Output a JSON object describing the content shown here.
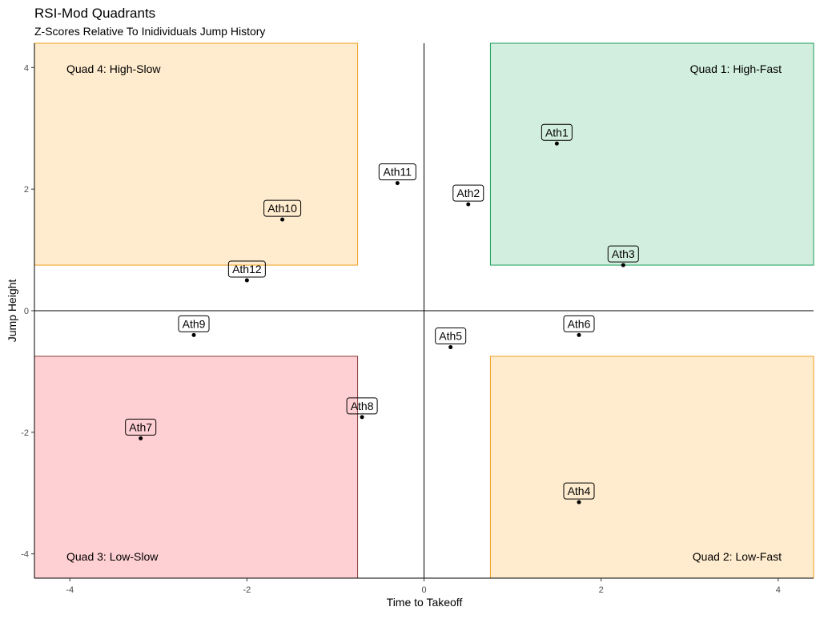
{
  "chart_data": {
    "type": "scatter",
    "title": "RSI-Mod Quadrants",
    "subtitle": "Z-Scores Relative To Inidividuals Jump History",
    "xlabel": "Time to Takeoff",
    "ylabel": "Jump Height",
    "xlim": [
      -4.4,
      4.4
    ],
    "ylim": [
      -4.4,
      4.4
    ],
    "xticks": [
      -4,
      -2,
      0,
      2,
      4
    ],
    "yticks": [
      -4,
      -2,
      0,
      2,
      4
    ],
    "grid": false,
    "reference_lines": {
      "x": 0,
      "y": 0
    },
    "quadrants": [
      {
        "label": "Quad 1: High-Fast",
        "x": [
          0.75,
          4.4
        ],
        "y": [
          0.75,
          4.4
        ],
        "fill": "#d2eedf",
        "stroke": "#1a9e5a"
      },
      {
        "label": "Quad 2: Low-Fast",
        "x": [
          0.75,
          4.4
        ],
        "y": [
          -4.4,
          -0.75
        ],
        "fill": "#ffebcd",
        "stroke": "#f0a020"
      },
      {
        "label": "Quad 3: Low-Slow",
        "x": [
          -4.4,
          -0.75
        ],
        "y": [
          -4.4,
          -0.75
        ],
        "fill": "#ffd0d3",
        "stroke": "#8b3a3a"
      },
      {
        "label": "Quad 4: High-Slow",
        "x": [
          -4.4,
          -0.75
        ],
        "y": [
          0.75,
          4.4
        ],
        "fill": "#ffebcd",
        "stroke": "#f0a020"
      }
    ],
    "points": [
      {
        "label": "Ath1",
        "x": 1.5,
        "y": 2.75
      },
      {
        "label": "Ath2",
        "x": 0.5,
        "y": 1.75
      },
      {
        "label": "Ath3",
        "x": 2.25,
        "y": 0.75
      },
      {
        "label": "Ath4",
        "x": 1.75,
        "y": -3.15
      },
      {
        "label": "Ath5",
        "x": 0.3,
        "y": -0.6
      },
      {
        "label": "Ath6",
        "x": 1.75,
        "y": -0.4
      },
      {
        "label": "Ath7",
        "x": -3.2,
        "y": -2.1
      },
      {
        "label": "Ath8",
        "x": -0.7,
        "y": -1.75
      },
      {
        "label": "Ath9",
        "x": -2.6,
        "y": -0.4
      },
      {
        "label": "Ath10",
        "x": -1.6,
        "y": 1.5
      },
      {
        "label": "Ath11",
        "x": -0.3,
        "y": 2.1
      },
      {
        "label": "Ath12",
        "x": -2.0,
        "y": 0.5
      }
    ]
  }
}
